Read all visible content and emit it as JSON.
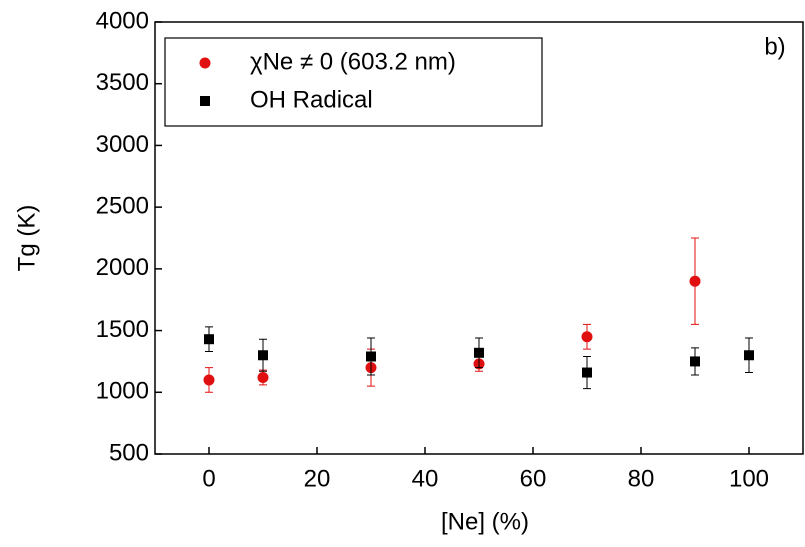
{
  "chart_data": {
    "type": "scatter",
    "x_label": "[Ne] (%)",
    "y_label": "Tg (K)",
    "annotation": "b)",
    "xlim": [
      -10,
      110
    ],
    "xticks": [
      0,
      20,
      40,
      60,
      80,
      100
    ],
    "ylim": [
      500,
      4000
    ],
    "yticks": [
      500,
      1000,
      1500,
      2000,
      2500,
      3000,
      3500,
      4000
    ],
    "series": [
      {
        "name": "χNe ≠ 0 (603.2 nm)",
        "color": "#e01010",
        "marker": "circle",
        "x": [
          0,
          10,
          30,
          50,
          70,
          90
        ],
        "values": [
          1100,
          1120,
          1200,
          1230,
          1450,
          1900
        ],
        "errors": [
          100,
          60,
          150,
          60,
          100,
          350
        ]
      },
      {
        "name": "OH Radical",
        "color": "#000000",
        "marker": "square",
        "x": [
          0,
          10,
          30,
          50,
          70,
          90,
          100
        ],
        "values": [
          1430,
          1300,
          1290,
          1320,
          1160,
          1250,
          1300
        ],
        "errors": [
          100,
          130,
          150,
          120,
          130,
          110,
          140
        ]
      }
    ]
  }
}
